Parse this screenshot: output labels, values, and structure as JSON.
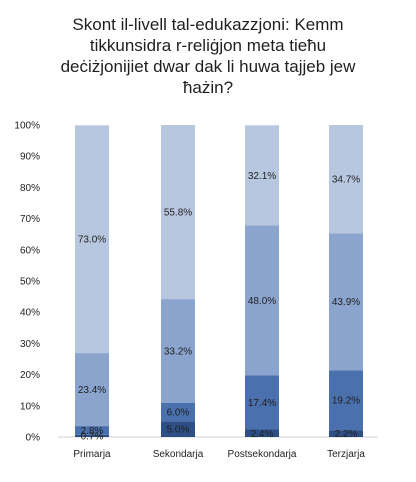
{
  "title_lines": [
    "Skont il-livell tal-edukazzjoni: Kemm",
    "tikkunsidra r-reliġjon meta tieħu",
    "deċiżjonijiet dwar dak li huwa tajjeb jew",
    "ħażin?"
  ],
  "chart_data": {
    "type": "bar",
    "stacked": true,
    "categories": [
      "Primarja",
      "Sekondarja",
      "Postsekondarja",
      "Terzjarja"
    ],
    "series": [
      {
        "values": [
          0.7,
          5.0,
          2.4,
          2.2
        ],
        "color": "#2e4f86"
      },
      {
        "values": [
          2.8,
          6.0,
          17.4,
          19.2
        ],
        "color": "#4a70ad"
      },
      {
        "values": [
          23.4,
          33.2,
          48.0,
          43.9
        ],
        "color": "#8aa4ce"
      },
      {
        "values": [
          73.0,
          55.8,
          32.1,
          34.7
        ],
        "color": "#b8c7e0"
      }
    ],
    "data_labels": [
      [
        "0.7%",
        "5.0%",
        "2.4%",
        "2.2%"
      ],
      [
        "2.8%",
        "6.0%",
        "17.4%",
        "19.2%"
      ],
      [
        "23.4%",
        "33.2%",
        "48.0%",
        "43.9%"
      ],
      [
        "73.0%",
        "55.8%",
        "32.1%",
        "34.7%"
      ]
    ],
    "ylim": [
      0,
      100
    ],
    "y_ticks": [
      "0%",
      "10%",
      "20%",
      "30%",
      "40%",
      "50%",
      "60%",
      "70%",
      "80%",
      "90%",
      "100%"
    ],
    "grid": false,
    "legend": "none"
  }
}
